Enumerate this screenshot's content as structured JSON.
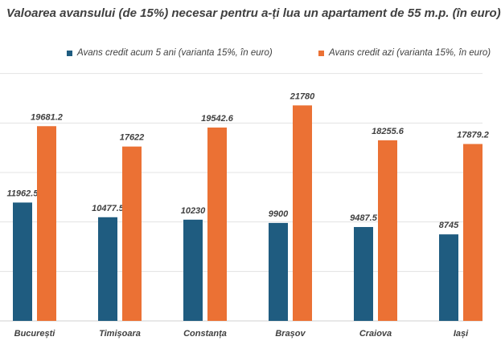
{
  "chart_data": {
    "type": "bar",
    "title": "Valoarea avansului (de 15%) necesar pentru a-ți lua un apartament de 55 m.p. (în euro)",
    "categories": [
      "București",
      "Timișoara",
      "Constanța",
      "Brașov",
      "Craiova",
      "Iași"
    ],
    "series": [
      {
        "name": "Avans credit acum 5 ani (varianta 15%, în euro)",
        "color": "#1f5c80",
        "values": [
          11962.5,
          10477.5,
          10230,
          9900,
          9487.5,
          8745
        ],
        "labels": [
          "11962.5",
          "10477.5",
          "10230",
          "9900",
          "9487.5",
          "8745"
        ]
      },
      {
        "name": "Avans credit azi  (varianta 15%, în euro)",
        "color": "#eb7134",
        "values": [
          19681.2,
          17622,
          19542.6,
          21780,
          18255.6,
          17879.2
        ],
        "labels": [
          "19681.2",
          "17622",
          "19542.6",
          "21780",
          "18255.6",
          "17879.2"
        ]
      }
    ],
    "ylim": [
      0,
      30000
    ],
    "grid": true,
    "legend": "top"
  }
}
